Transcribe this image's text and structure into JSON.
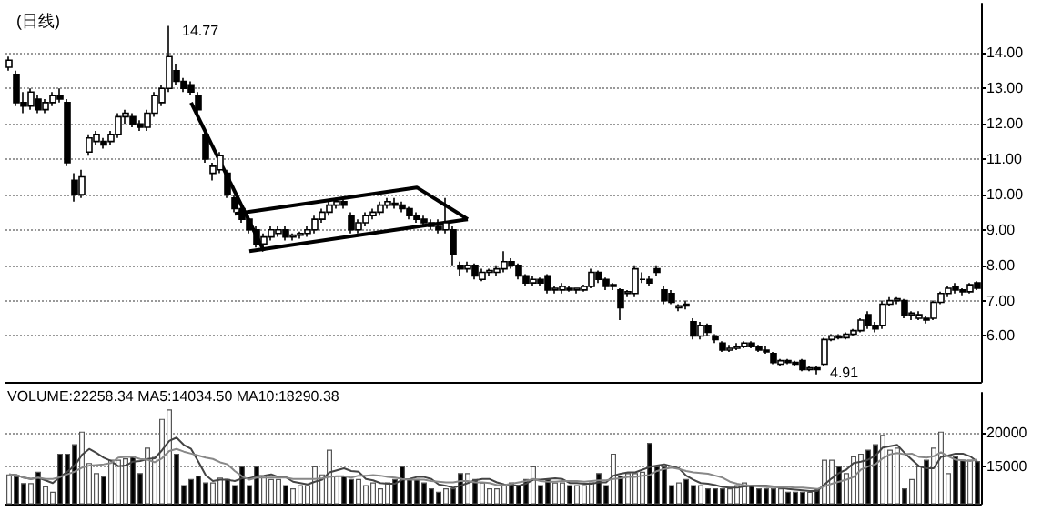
{
  "chart_data": [
    {
      "type": "candlestick",
      "title": "(日线)",
      "tick_labels": "y",
      "grid": "y",
      "ylim": [
        4.7,
        15.4
      ],
      "yticks": [
        {
          "value": 6,
          "label": "6.00"
        },
        {
          "value": 7,
          "label": "7.00"
        },
        {
          "value": 8,
          "label": "8.00"
        },
        {
          "value": 9,
          "label": "9.00"
        },
        {
          "value": 10,
          "label": "10.00"
        },
        {
          "value": 11,
          "label": "11.00"
        },
        {
          "value": 12,
          "label": "12.00"
        },
        {
          "value": 13,
          "label": "13.00"
        },
        {
          "value": 14,
          "label": "14.00"
        }
      ],
      "annotations": [
        "14.77",
        "4.91"
      ],
      "categories": [
        null,
        null,
        null,
        null,
        null,
        null,
        null,
        null,
        null,
        null,
        null,
        null,
        null,
        null,
        null,
        null,
        null,
        null,
        null,
        null,
        null,
        null,
        null,
        null,
        null,
        null,
        null,
        null,
        null,
        null,
        null,
        null,
        null,
        null,
        null,
        null,
        null,
        null,
        null,
        null,
        null,
        null,
        null,
        null,
        null,
        null,
        null,
        null,
        null,
        null,
        null,
        null,
        null,
        null,
        null,
        null,
        null,
        null,
        null,
        null,
        null,
        null,
        null,
        null,
        null,
        null,
        null,
        null,
        null,
        null,
        null,
        null,
        null,
        null,
        null,
        null,
        null,
        null,
        null,
        null,
        null,
        null,
        null,
        null,
        null,
        null,
        null,
        null,
        null,
        null,
        null,
        null,
        null,
        null,
        null,
        null,
        null,
        null,
        null,
        null,
        null,
        null,
        null,
        null,
        null,
        null,
        null,
        null,
        null,
        null,
        null,
        null,
        null,
        null,
        null,
        null,
        null,
        null,
        null,
        null,
        null,
        null,
        null,
        null,
        null,
        null,
        null,
        null,
        null,
        null,
        null,
        null,
        null,
        null
      ],
      "ohlc": [
        [
          13.6,
          13.9,
          13.5,
          13.8
        ],
        [
          13.4,
          13.5,
          12.5,
          12.6
        ],
        [
          12.6,
          12.9,
          12.3,
          12.5
        ],
        [
          12.5,
          13.0,
          12.4,
          12.9
        ],
        [
          12.7,
          12.8,
          12.3,
          12.4
        ],
        [
          12.4,
          12.7,
          12.3,
          12.6
        ],
        [
          12.6,
          12.9,
          12.5,
          12.8
        ],
        [
          12.8,
          13.0,
          12.6,
          12.7
        ],
        [
          12.6,
          12.7,
          10.8,
          10.9
        ],
        [
          10.4,
          10.6,
          9.8,
          10.0
        ],
        [
          10.0,
          10.7,
          9.9,
          10.5
        ],
        [
          11.2,
          11.7,
          11.1,
          11.6
        ],
        [
          11.5,
          11.8,
          11.4,
          11.7
        ],
        [
          11.5,
          11.6,
          11.3,
          11.4
        ],
        [
          11.5,
          11.8,
          11.4,
          11.7
        ],
        [
          11.7,
          12.3,
          11.6,
          12.2
        ],
        [
          12.2,
          12.4,
          12.0,
          12.3
        ],
        [
          12.2,
          12.3,
          11.9,
          12.0
        ],
        [
          12.0,
          12.1,
          11.8,
          11.9
        ],
        [
          11.9,
          12.4,
          11.8,
          12.3
        ],
        [
          12.3,
          12.9,
          12.2,
          12.8
        ],
        [
          12.6,
          13.1,
          12.5,
          13.0
        ],
        [
          13.0,
          14.77,
          12.9,
          13.9
        ],
        [
          13.5,
          13.7,
          13.1,
          13.2
        ],
        [
          13.2,
          13.3,
          12.9,
          13.0
        ],
        [
          13.1,
          13.2,
          12.8,
          12.9
        ],
        [
          12.8,
          12.9,
          12.3,
          12.4
        ],
        [
          11.7,
          11.8,
          10.9,
          11.0
        ],
        [
          10.6,
          10.9,
          10.4,
          10.8
        ],
        [
          10.7,
          11.2,
          10.6,
          11.1
        ],
        [
          10.6,
          10.7,
          9.9,
          10.0
        ],
        [
          9.9,
          10.0,
          9.5,
          9.6
        ],
        [
          9.6,
          9.7,
          9.2,
          9.3
        ],
        [
          9.3,
          9.4,
          8.9,
          9.0
        ],
        [
          9.0,
          9.1,
          8.5,
          8.6
        ],
        [
          8.6,
          8.9,
          8.5,
          8.8
        ],
        [
          8.8,
          9.1,
          8.7,
          9.0
        ],
        [
          8.9,
          9.1,
          8.8,
          9.0
        ],
        [
          9.0,
          9.1,
          8.7,
          8.8
        ],
        [
          8.8,
          8.9,
          8.7,
          8.85
        ],
        [
          8.85,
          8.95,
          8.75,
          8.9
        ],
        [
          8.9,
          9.1,
          8.8,
          9.0
        ],
        [
          9.0,
          9.4,
          8.9,
          9.3
        ],
        [
          9.3,
          9.6,
          9.2,
          9.5
        ],
        [
          9.5,
          9.8,
          9.4,
          9.7
        ],
        [
          9.7,
          9.9,
          9.6,
          9.8
        ],
        [
          9.8,
          9.85,
          9.6,
          9.7
        ],
        [
          9.4,
          9.5,
          8.9,
          9.0
        ],
        [
          9.0,
          9.3,
          8.9,
          9.2
        ],
        [
          9.2,
          9.5,
          9.1,
          9.4
        ],
        [
          9.4,
          9.6,
          9.3,
          9.5
        ],
        [
          9.5,
          9.8,
          9.4,
          9.7
        ],
        [
          9.7,
          9.9,
          9.6,
          9.8
        ],
        [
          9.75,
          9.9,
          9.6,
          9.7
        ],
        [
          9.7,
          9.8,
          9.5,
          9.6
        ],
        [
          9.6,
          9.65,
          9.3,
          9.4
        ],
        [
          9.4,
          9.5,
          9.2,
          9.3
        ],
        [
          9.3,
          9.4,
          9.1,
          9.2
        ],
        [
          9.2,
          9.3,
          9.0,
          9.1
        ],
        [
          9.1,
          9.3,
          8.9,
          9.0
        ],
        [
          9.0,
          9.9,
          8.9,
          9.2
        ],
        [
          9.0,
          9.1,
          8.0,
          8.3
        ],
        [
          8.0,
          8.1,
          7.7,
          7.9
        ],
        [
          7.9,
          8.1,
          7.8,
          8.0
        ],
        [
          8.0,
          8.05,
          7.6,
          7.7
        ],
        [
          7.6,
          7.9,
          7.55,
          7.8
        ],
        [
          7.8,
          7.9,
          7.7,
          7.85
        ],
        [
          7.8,
          8.0,
          7.7,
          7.9
        ],
        [
          7.9,
          8.4,
          7.8,
          8.1
        ],
        [
          8.1,
          8.2,
          7.9,
          8.0
        ],
        [
          8.0,
          8.05,
          7.6,
          7.7
        ],
        [
          7.7,
          7.75,
          7.4,
          7.5
        ],
        [
          7.5,
          7.7,
          7.4,
          7.6
        ],
        [
          7.6,
          7.65,
          7.4,
          7.5
        ],
        [
          7.7,
          7.75,
          7.2,
          7.3
        ],
        [
          7.3,
          7.4,
          7.2,
          7.35
        ],
        [
          7.3,
          7.5,
          7.2,
          7.4
        ],
        [
          7.35,
          7.4,
          7.25,
          7.3
        ],
        [
          7.3,
          7.35,
          7.2,
          7.35
        ],
        [
          7.3,
          7.45,
          7.25,
          7.4
        ],
        [
          7.4,
          7.9,
          7.35,
          7.8
        ],
        [
          7.8,
          7.85,
          7.5,
          7.6
        ],
        [
          7.6,
          7.65,
          7.3,
          7.4
        ],
        [
          7.4,
          7.5,
          7.3,
          7.45
        ],
        [
          7.3,
          7.35,
          6.45,
          6.8
        ],
        [
          7.2,
          7.3,
          7.1,
          7.25
        ],
        [
          7.2,
          8.0,
          7.1,
          7.9
        ],
        [
          7.6,
          7.8,
          7.5,
          7.6
        ],
        [
          7.6,
          7.7,
          7.4,
          7.5
        ],
        [
          7.9,
          8.0,
          7.7,
          7.8
        ],
        [
          7.3,
          7.4,
          6.9,
          7.0
        ],
        [
          7.2,
          7.3,
          6.9,
          6.95
        ],
        [
          6.8,
          6.9,
          6.7,
          6.85
        ],
        [
          6.9,
          7.0,
          6.75,
          6.85
        ],
        [
          6.4,
          6.5,
          5.9,
          6.0
        ],
        [
          6.0,
          6.4,
          5.9,
          6.3
        ],
        [
          6.3,
          6.35,
          6.0,
          6.1
        ],
        [
          6.0,
          6.05,
          5.8,
          5.9
        ],
        [
          5.8,
          5.85,
          5.55,
          5.6
        ],
        [
          5.6,
          5.75,
          5.55,
          5.65
        ],
        [
          5.65,
          5.8,
          5.6,
          5.7
        ],
        [
          5.7,
          5.85,
          5.65,
          5.8
        ],
        [
          5.8,
          5.85,
          5.65,
          5.7
        ],
        [
          5.7,
          5.75,
          5.55,
          5.6
        ],
        [
          5.6,
          5.7,
          5.5,
          5.55
        ],
        [
          5.5,
          5.55,
          5.2,
          5.25
        ],
        [
          5.2,
          5.35,
          5.15,
          5.3
        ],
        [
          5.3,
          5.35,
          5.2,
          5.25
        ],
        [
          5.25,
          5.3,
          5.15,
          5.2
        ],
        [
          5.3,
          5.35,
          5.0,
          5.05
        ],
        [
          5.05,
          5.15,
          5.0,
          5.1
        ],
        [
          5.1,
          5.15,
          4.91,
          5.05
        ],
        [
          5.2,
          5.95,
          5.15,
          5.9
        ],
        [
          5.9,
          6.05,
          5.85,
          6.0
        ],
        [
          6.0,
          6.05,
          5.9,
          5.95
        ],
        [
          5.95,
          6.1,
          5.9,
          6.05
        ],
        [
          6.05,
          6.2,
          6.0,
          6.15
        ],
        [
          6.15,
          6.5,
          6.1,
          6.45
        ],
        [
          6.6,
          6.7,
          6.2,
          6.3
        ],
        [
          6.3,
          6.4,
          6.1,
          6.2
        ],
        [
          6.3,
          7.0,
          6.2,
          6.9
        ],
        [
          6.9,
          7.1,
          6.85,
          7.0
        ],
        [
          7.0,
          7.1,
          6.9,
          7.05
        ],
        [
          7.0,
          7.05,
          6.5,
          6.6
        ],
        [
          6.6,
          6.7,
          6.45,
          6.65
        ],
        [
          6.5,
          6.7,
          6.45,
          6.6
        ],
        [
          6.5,
          6.55,
          6.35,
          6.45
        ],
        [
          6.5,
          7.0,
          6.45,
          6.95
        ],
        [
          6.95,
          7.25,
          6.9,
          7.2
        ],
        [
          7.2,
          7.4,
          7.1,
          7.35
        ],
        [
          7.4,
          7.5,
          7.2,
          7.3
        ],
        [
          7.3,
          7.35,
          7.15,
          7.25
        ],
        [
          7.25,
          7.5,
          7.2,
          7.45
        ],
        [
          7.5,
          7.55,
          7.3,
          7.35
        ]
      ],
      "series": [
        {
          "type": "line",
          "color": "#000000",
          "values": [
            null,
            null,
            null,
            null,
            null,
            null,
            null,
            null,
            null,
            null,
            null,
            null,
            null,
            null,
            null,
            null,
            null,
            null,
            null,
            null,
            null,
            null,
            null,
            null,
            null,
            12.6,
            null,
            null,
            null,
            null,
            null,
            null,
            null,
            null,
            null,
            8.4,
            null,
            null,
            null,
            null,
            null,
            null,
            null,
            null,
            null,
            null,
            null,
            null,
            null,
            null,
            null,
            null,
            null,
            null,
            null,
            null,
            null,
            null,
            null,
            null,
            null,
            null,
            null,
            null,
            null,
            null,
            null,
            null,
            null,
            null,
            null,
            null,
            null,
            null,
            null,
            null,
            null,
            null,
            null,
            null,
            null,
            null,
            null,
            null,
            null,
            null,
            null,
            null,
            null,
            null,
            null,
            null,
            null,
            null,
            null,
            null,
            null,
            null,
            null,
            null,
            null,
            null,
            null,
            null,
            null,
            null,
            null,
            null,
            null,
            null,
            null,
            null,
            null,
            null,
            null,
            null,
            null,
            null,
            null,
            null,
            null,
            null,
            null,
            null,
            null,
            null,
            null,
            null,
            null,
            null,
            null,
            null,
            null,
            null
          ]
        },
        {
          "type": "line",
          "color": "#000000",
          "values": [
            null,
            null,
            null,
            null,
            null,
            null,
            null,
            null,
            null,
            null,
            null,
            null,
            null,
            null,
            null,
            null,
            null,
            null,
            null,
            null,
            null,
            null,
            null,
            null,
            null,
            null,
            null,
            null,
            null,
            null,
            null,
            9.45,
            null,
            null,
            null,
            null,
            null,
            null,
            null,
            null,
            null,
            null,
            null,
            null,
            null,
            null,
            null,
            null,
            null,
            null,
            null,
            null,
            null,
            null,
            null,
            null,
            10.2,
            null,
            null,
            null,
            null,
            null,
            null,
            9.3,
            null,
            null,
            null,
            null,
            null,
            null,
            null,
            null,
            null,
            null,
            null,
            null,
            null,
            null,
            null,
            null,
            null,
            null,
            null,
            null,
            null,
            null,
            null,
            null,
            null,
            null,
            null,
            null,
            null,
            null,
            null,
            null,
            null,
            null,
            null,
            null,
            null,
            null,
            null,
            null,
            null,
            null,
            null,
            null,
            null,
            null,
            null,
            null,
            null,
            null,
            null,
            null,
            null,
            null,
            null,
            null,
            null,
            null,
            null,
            null,
            null,
            null,
            null,
            null,
            null,
            null,
            null,
            null,
            null,
            null
          ]
        },
        {
          "type": "line",
          "color": "#000000",
          "values": [
            null,
            null,
            null,
            null,
            null,
            null,
            null,
            null,
            null,
            null,
            null,
            null,
            null,
            null,
            null,
            null,
            null,
            null,
            null,
            null,
            null,
            null,
            null,
            null,
            null,
            null,
            null,
            null,
            null,
            null,
            null,
            null,
            null,
            8.4,
            null,
            null,
            null,
            null,
            null,
            null,
            null,
            null,
            null,
            null,
            null,
            null,
            null,
            null,
            null,
            null,
            null,
            null,
            null,
            null,
            null,
            null,
            null,
            null,
            null,
            null,
            null,
            null,
            null,
            9.3,
            null,
            null,
            null,
            null,
            null,
            null,
            null,
            null,
            null,
            null,
            null,
            null,
            null,
            null,
            null,
            null,
            null,
            null,
            null,
            null,
            null,
            null,
            null,
            null,
            null,
            null,
            null,
            null,
            null,
            null,
            null,
            null,
            null,
            null,
            null,
            null,
            null,
            null,
            null,
            null,
            null,
            null,
            null,
            null,
            null,
            null,
            null,
            null,
            null,
            null,
            null,
            null,
            null,
            null,
            null,
            null,
            null,
            null,
            null,
            null,
            null,
            null,
            null,
            null,
            null,
            null,
            null,
            null,
            null,
            null
          ]
        }
      ]
    },
    {
      "type": "bar",
      "tick_labels": "y",
      "grid": "y",
      "ylim": [
        9400,
        26000
      ],
      "yticks": [
        15000,
        20000
      ],
      "annotations": [
        "VOLUME:22258.34 MA5:14034.50 MA10:18290.38"
      ],
      "categories": [
        null,
        null,
        null,
        null,
        null,
        null,
        null,
        null,
        null,
        null,
        null,
        null,
        null,
        null,
        null,
        null,
        null,
        null,
        null,
        null,
        null,
        null,
        null,
        null,
        null,
        null,
        null,
        null,
        null,
        null,
        null,
        null,
        null,
        null,
        null,
        null,
        null,
        null,
        null,
        null,
        null,
        null,
        null,
        null,
        null,
        null,
        null,
        null,
        null,
        null,
        null,
        null,
        null,
        null,
        null,
        null,
        null,
        null,
        null,
        null,
        null,
        null,
        null,
        null,
        null,
        null,
        null,
        null,
        null,
        null,
        null,
        null,
        null,
        null,
        null,
        null,
        null,
        null,
        null,
        null,
        null,
        null,
        null,
        null,
        null,
        null,
        null,
        null,
        null,
        null,
        null,
        null,
        null,
        null,
        null,
        null,
        null,
        null,
        null,
        null,
        null,
        null,
        null,
        null,
        null,
        null,
        null,
        null,
        null,
        null,
        null,
        null,
        null,
        null,
        null,
        null,
        null,
        null,
        null,
        null,
        null,
        null,
        null,
        null,
        null,
        null,
        null,
        null,
        null,
        null,
        null,
        null,
        null,
        null
      ],
      "series": [
        {
          "type": "bar",
          "values": [
            13800,
            13500,
            12500,
            12500,
            14200,
            12000,
            11200,
            16900,
            16900,
            18300,
            20200,
            15500,
            14000,
            13500,
            16000,
            16000,
            16200,
            16600,
            14000,
            17800,
            16400,
            22100,
            23500,
            16900,
            12200,
            13100,
            13600,
            12600,
            12600,
            13300,
            13100,
            12200,
            15000,
            12200,
            15000,
            13600,
            13100,
            13100,
            12200,
            11700,
            12200,
            12200,
            15000,
            13800,
            17500,
            13600,
            13600,
            13100,
            13100,
            12200,
            12600,
            11700,
            12600,
            13100,
            15000,
            13100,
            13100,
            12600,
            11700,
            11200,
            11700,
            11700,
            14000,
            14000,
            13100,
            12600,
            11700,
            11700,
            12200,
            12600,
            12200,
            13100,
            15000,
            12200,
            13100,
            12600,
            12600,
            12200,
            12200,
            12200,
            12600,
            14000,
            12200,
            16900,
            13600,
            14000,
            14000,
            14200,
            18500,
            15000,
            15000,
            12200,
            12600,
            13100,
            12200,
            12200,
            11700,
            11700,
            11700,
            11700,
            12200,
            12600,
            12200,
            11700,
            11700,
            11700,
            11700,
            11200,
            11200,
            11200,
            11200,
            11700,
            16000,
            16000,
            15000,
            14000,
            16500,
            16900,
            17500,
            18300,
            19700,
            17500,
            17800,
            11700,
            13100,
            15000,
            16000,
            17800,
            20200,
            14000,
            16500,
            16000,
            16000,
            15800
          ],
          "colors": [
            "#ffffff",
            "#000000",
            "#000000",
            "#ffffff",
            "#000000",
            "#ffffff",
            "#ffffff",
            "#000000",
            "#000000",
            "#000000",
            "#ffffff",
            "#ffffff",
            "#ffffff",
            "#000000",
            "#ffffff",
            "#ffffff",
            "#ffffff",
            "#000000",
            "#000000",
            "#ffffff",
            "#ffffff",
            "#ffffff",
            "#ffffff",
            "#000000",
            "#000000",
            "#000000",
            "#000000",
            "#000000",
            "#ffffff",
            "#ffffff",
            "#000000",
            "#000000",
            "#000000",
            "#000000",
            "#000000",
            "#ffffff",
            "#ffffff",
            "#ffffff",
            "#000000",
            "#ffffff",
            "#ffffff",
            "#ffffff",
            "#ffffff",
            "#ffffff",
            "#ffffff",
            "#ffffff",
            "#000000",
            "#000000",
            "#ffffff",
            "#ffffff",
            "#ffffff",
            "#ffffff",
            "#ffffff",
            "#000000",
            "#000000",
            "#000000",
            "#000000",
            "#000000",
            "#000000",
            "#000000",
            "#ffffff",
            "#000000",
            "#000000",
            "#ffffff",
            "#000000",
            "#ffffff",
            "#ffffff",
            "#ffffff",
            "#ffffff",
            "#000000",
            "#000000",
            "#000000",
            "#ffffff",
            "#000000",
            "#000000",
            "#ffffff",
            "#ffffff",
            "#000000",
            "#ffffff",
            "#ffffff",
            "#ffffff",
            "#000000",
            "#000000",
            "#ffffff",
            "#000000",
            "#ffffff",
            "#ffffff",
            "#ffffff",
            "#000000",
            "#000000",
            "#000000",
            "#000000",
            "#ffffff",
            "#000000",
            "#000000",
            "#ffffff",
            "#000000",
            "#000000",
            "#000000",
            "#ffffff",
            "#ffffff",
            "#ffffff",
            "#000000",
            "#000000",
            "#000000",
            "#000000",
            "#ffffff",
            "#000000",
            "#000000",
            "#000000",
            "#ffffff",
            "#000000",
            "#ffffff",
            "#ffffff",
            "#000000",
            "#ffffff",
            "#ffffff",
            "#ffffff",
            "#000000",
            "#000000",
            "#ffffff",
            "#ffffff",
            "#ffffff",
            "#000000",
            "#ffffff",
            "#ffffff",
            "#000000",
            "#ffffff",
            "#ffffff",
            "#ffffff",
            "#000000",
            "#000000",
            "#ffffff",
            "#000000"
          ]
        },
        {
          "type": "line",
          "color": "#444444",
          "values": [
            13800,
            13700,
            13300,
            13100,
            13300,
            12900,
            12500,
            13400,
            14200,
            15100,
            16700,
            17600,
            17000,
            16300,
            15800,
            15000,
            15100,
            15700,
            15800,
            16100,
            16200,
            17400,
            18800,
            19300,
            18200,
            17600,
            15700,
            13700,
            12800,
            13000,
            13000,
            12800,
            13200,
            13200,
            13500,
            13600,
            13800,
            13400,
            13400,
            12700,
            12500,
            12300,
            12700,
            13000,
            14100,
            14400,
            14700,
            14300,
            14200,
            13100,
            12900,
            12500,
            12400,
            12400,
            13000,
            13100,
            13400,
            13400,
            13100,
            12300,
            12100,
            11800,
            12100,
            12500,
            12900,
            13100,
            13100,
            12600,
            12300,
            12200,
            12100,
            12400,
            13000,
            13000,
            13100,
            13200,
            13100,
            12500,
            12500,
            12400,
            12400,
            12600,
            12600,
            13600,
            13900,
            14100,
            14100,
            14500,
            14900,
            15100,
            15300,
            15000,
            14700,
            13600,
            13000,
            12500,
            12400,
            12200,
            11900,
            11800,
            11800,
            12000,
            12100,
            12100,
            12100,
            12000,
            11800,
            11600,
            11500,
            11400,
            11300,
            11300,
            12300,
            13200,
            14000,
            14500,
            15500,
            15700,
            16000,
            16600,
            17800,
            18000,
            18200,
            17000,
            16000,
            15000,
            14700,
            14700,
            16400,
            16600,
            16900,
            16900,
            16500,
            15700
          ]
        },
        {
          "type": "line",
          "color": "#888888",
          "values": [
            13800,
            13700,
            13300,
            13100,
            13300,
            13100,
            13100,
            13400,
            13800,
            14200,
            14800,
            15100,
            15200,
            15300,
            15500,
            16300,
            16400,
            16400,
            16100,
            16000,
            15600,
            16200,
            17300,
            17600,
            17200,
            16900,
            16600,
            16300,
            16100,
            15600,
            15300,
            14300,
            13500,
            13000,
            13300,
            13300,
            13300,
            13300,
            13300,
            13100,
            13100,
            13100,
            13100,
            13200,
            13400,
            13500,
            13500,
            13300,
            13600,
            13600,
            13700,
            13600,
            13400,
            13300,
            13100,
            13000,
            13000,
            13000,
            12800,
            12700,
            12600,
            12600,
            12800,
            12800,
            12600,
            12600,
            12500,
            12200,
            12200,
            12400,
            12600,
            12800,
            13100,
            12800,
            12700,
            12700,
            12800,
            12800,
            12800,
            12700,
            12800,
            12900,
            12900,
            13100,
            13200,
            13400,
            13400,
            13600,
            13700,
            14300,
            14600,
            14800,
            14600,
            14300,
            14100,
            14000,
            13900,
            13600,
            13300,
            12700,
            12400,
            12200,
            12100,
            12000,
            11900,
            11900,
            11900,
            11900,
            11800,
            11800,
            11700,
            11600,
            12000,
            12400,
            12700,
            13000,
            13400,
            14500,
            15000,
            15300,
            16200,
            16800,
            17000,
            16800,
            16900,
            16400,
            16300,
            16500,
            17100,
            16500,
            16000,
            15900,
            15800,
            16000
          ]
        }
      ]
    }
  ]
}
